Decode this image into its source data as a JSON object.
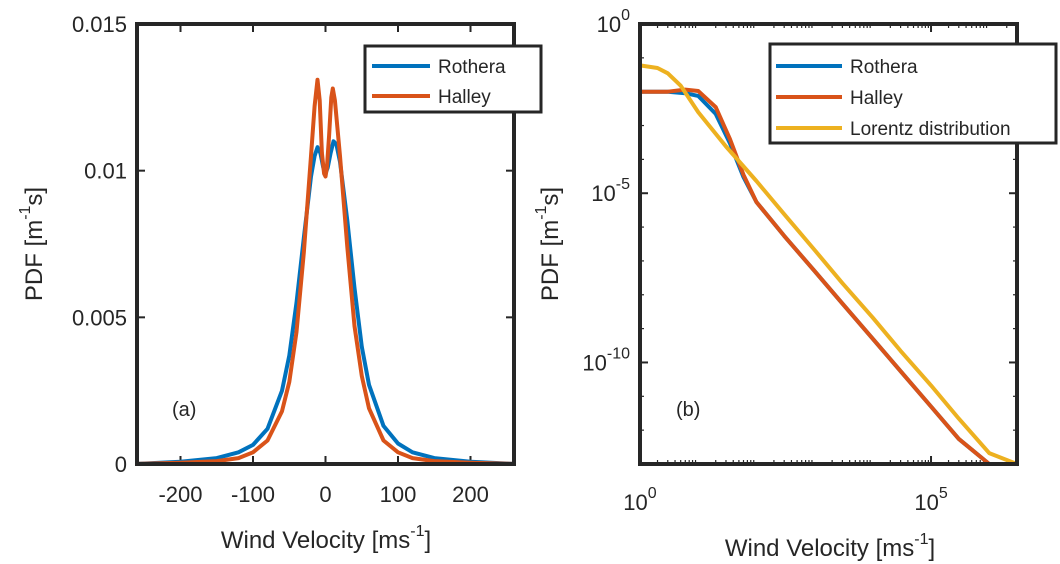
{
  "chart_data": [
    {
      "type": "line",
      "panel": "(a)",
      "xlabel_text": "Wind Velocity [ms",
      "xlabel_sup": "-1",
      "xlabel_tail": "]",
      "ylabel_text": "PDF [m",
      "ylabel_sup": "-1",
      "ylabel_tail": "s]",
      "xlim": [
        -260,
        260
      ],
      "ylim": [
        0,
        0.015
      ],
      "xticks": [
        -200,
        -100,
        0,
        100,
        200
      ],
      "xtick_labels": [
        "-200",
        "-100",
        "0",
        "100",
        "200"
      ],
      "yticks": [
        0,
        0.005,
        0.01,
        0.015
      ],
      "ytick_labels": [
        "0",
        "0.005",
        "0.01",
        "0.015"
      ],
      "grid": false,
      "legend": {
        "placement": "top-right",
        "entries": [
          "Rothera",
          "Halley"
        ]
      },
      "series": [
        {
          "name": "Rothera",
          "color": "#0072BD",
          "points": [
            [
              -260,
              3e-06
            ],
            [
              -200,
              8e-05
            ],
            [
              -150,
              0.0002
            ],
            [
              -120,
              0.0004
            ],
            [
              -100,
              0.00065
            ],
            [
              -80,
              0.0012
            ],
            [
              -60,
              0.0025
            ],
            [
              -50,
              0.0037
            ],
            [
              -40,
              0.0055
            ],
            [
              -30,
              0.0077
            ],
            [
              -20,
              0.0098
            ],
            [
              -15,
              0.0105
            ],
            [
              -11,
              0.0108
            ],
            [
              -7,
              0.0106
            ],
            [
              -3,
              0.0101
            ],
            [
              0,
              0.0099
            ],
            [
              3,
              0.0101
            ],
            [
              7,
              0.0106
            ],
            [
              11,
              0.011
            ],
            [
              15,
              0.0109
            ],
            [
              20,
              0.0103
            ],
            [
              30,
              0.0083
            ],
            [
              40,
              0.006
            ],
            [
              50,
              0.004
            ],
            [
              60,
              0.0027
            ],
            [
              80,
              0.0013
            ],
            [
              100,
              0.0007
            ],
            [
              120,
              0.0004
            ],
            [
              150,
              0.0002
            ],
            [
              200,
              8e-05
            ],
            [
              260,
              3e-06
            ]
          ]
        },
        {
          "name": "Halley",
          "color": "#D95319",
          "points": [
            [
              -260,
              2e-06
            ],
            [
              -200,
              4e-05
            ],
            [
              -150,
              0.0001
            ],
            [
              -120,
              0.0002
            ],
            [
              -100,
              0.0004
            ],
            [
              -80,
              0.0008
            ],
            [
              -60,
              0.0018
            ],
            [
              -50,
              0.0028
            ],
            [
              -40,
              0.0045
            ],
            [
              -30,
              0.0072
            ],
            [
              -20,
              0.0105
            ],
            [
              -15,
              0.0122
            ],
            [
              -11,
              0.0131
            ],
            [
              -8,
              0.0124
            ],
            [
              -5,
              0.0106
            ],
            [
              -2,
              0.0099
            ],
            [
              0,
              0.0098
            ],
            [
              2,
              0.0101
            ],
            [
              5,
              0.0112
            ],
            [
              8,
              0.0125
            ],
            [
              10,
              0.0128
            ],
            [
              13,
              0.0124
            ],
            [
              20,
              0.0105
            ],
            [
              30,
              0.0074
            ],
            [
              40,
              0.0047
            ],
            [
              50,
              0.003
            ],
            [
              60,
              0.0019
            ],
            [
              80,
              0.0008
            ],
            [
              100,
              0.0004
            ],
            [
              120,
              0.0002
            ],
            [
              150,
              0.0001
            ],
            [
              200,
              4e-05
            ],
            [
              260,
              2e-06
            ]
          ]
        }
      ]
    },
    {
      "type": "line",
      "panel": "(b)",
      "xscale": "log",
      "yscale": "log",
      "xlabel_text": "Wind Velocity [ms",
      "xlabel_sup": "-1",
      "xlabel_tail": "]",
      "ylabel_text": "PDF [m",
      "ylabel_sup": "-1",
      "ylabel_tail": "s]",
      "xlim": [
        1,
        3000000
      ],
      "ylim": [
        1e-13,
        1
      ],
      "xticks": [
        1,
        100000
      ],
      "xtick_labels": [
        {
          "base": "10",
          "exp": "0"
        },
        {
          "base": "10",
          "exp": "5"
        }
      ],
      "yticks": [
        1e-10,
        1e-05,
        1
      ],
      "ytick_labels": [
        {
          "base": "10",
          "exp": "-10"
        },
        {
          "base": "10",
          "exp": "-5"
        },
        {
          "base": "10",
          "exp": "0"
        }
      ],
      "grid": false,
      "legend": {
        "placement": "top-right",
        "entries": [
          "Rothera",
          "Halley",
          "Lorentz distribution"
        ]
      },
      "series": [
        {
          "name": "Rothera",
          "color": "#0072BD",
          "points": [
            [
              1,
              0.01
            ],
            [
              3,
              0.01
            ],
            [
              6,
              0.009
            ],
            [
              10,
              0.0075
            ],
            [
              20,
              0.0022
            ],
            [
              35,
              0.0003
            ],
            [
              60,
              3e-05
            ],
            [
              100,
              5.5e-06
            ],
            [
              300,
              5.5e-07
            ],
            [
              1000,
              5e-08
            ],
            [
              3000,
              5.5e-09
            ],
            [
              10000,
              5e-10
            ],
            [
              30000,
              5.5e-11
            ],
            [
              100000,
              5e-12
            ],
            [
              300000,
              5.5e-13
            ],
            [
              1000000,
              6e-14
            ],
            [
              3000000,
              5e-15
            ]
          ]
        },
        {
          "name": "Halley",
          "color": "#D95319",
          "points": [
            [
              1,
              0.01
            ],
            [
              3,
              0.01
            ],
            [
              6,
              0.0115
            ],
            [
              10,
              0.0105
            ],
            [
              20,
              0.0035
            ],
            [
              35,
              0.0004
            ],
            [
              60,
              3.5e-05
            ],
            [
              100,
              5.5e-06
            ],
            [
              300,
              5.5e-07
            ],
            [
              1000,
              5e-08
            ],
            [
              3000,
              5.5e-09
            ],
            [
              10000,
              5e-10
            ],
            [
              30000,
              5.5e-11
            ],
            [
              100000,
              5e-12
            ],
            [
              300000,
              5.5e-13
            ],
            [
              1000000,
              6e-14
            ],
            [
              3000000,
              5e-15
            ]
          ]
        },
        {
          "name": "Lorentz distribution",
          "color": "#EDB120",
          "points": [
            [
              1,
              0.06
            ],
            [
              2,
              0.05
            ],
            [
              3,
              0.035
            ],
            [
              5,
              0.015
            ],
            [
              10,
              0.0025
            ],
            [
              30,
              0.00024
            ],
            [
              100,
              2.3e-05
            ],
            [
              300,
              2.4e-06
            ],
            [
              1000,
              2.1e-07
            ],
            [
              3000,
              2.2e-08
            ],
            [
              10000,
              2.1e-09
            ],
            [
              30000,
              2.2e-10
            ],
            [
              100000,
              2.1e-11
            ],
            [
              300000,
              2.2e-12
            ],
            [
              1000000,
              2.1e-13
            ],
            [
              3000000,
              2.2e-14
            ]
          ]
        }
      ]
    }
  ]
}
